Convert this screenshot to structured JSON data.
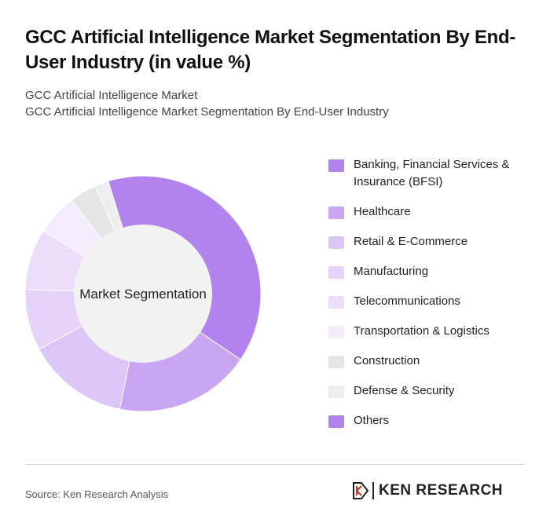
{
  "title": "GCC Artificial Intelligence Market Segmentation By End-User Industry (in value %)",
  "subtitle1": "GCC Artificial Intelligence Market",
  "subtitle2": "GCC Artificial Intelligence Market Segmentation By End-User Industry",
  "source": "Source: Ken Research Analysis",
  "logo_text": "KEN RESEARCH",
  "chart_data": {
    "type": "pie",
    "center_label": "Market Segmentation",
    "categories": [
      "Banking, Financial Services & Insurance (BFSI)",
      "Healthcare",
      "Retail & E-Commerce",
      "Manufacturing",
      "Telecommunications",
      "Transportation & Logistics",
      "Construction",
      "Defense & Security",
      "Others"
    ],
    "values": [
      42,
      20,
      15,
      9,
      9,
      6,
      4,
      2,
      0
    ],
    "colors": [
      "#b283ec",
      "#c9a5f2",
      "#dcc5f7",
      "#e5d3f9",
      "#ecdefb",
      "#f4ecfd",
      "#e6e6e6",
      "#eeeeee",
      "#b283ec"
    ]
  }
}
